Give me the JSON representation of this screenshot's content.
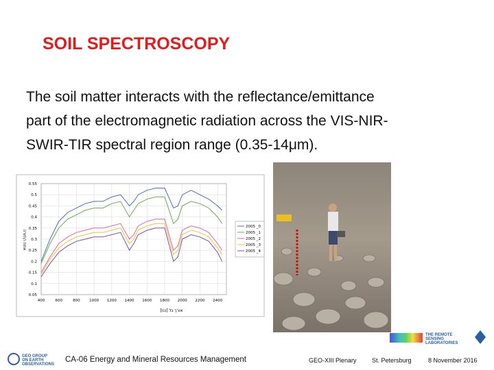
{
  "title": "SOIL SPECTROSCOPY",
  "body": {
    "lines": [
      "The soil matter interacts with the reflectance/emittance",
      "part of the electromagnetic radiation  across the VIS-NIR-",
      "SWIR-TIR spectral region range (0.35-14μm)."
    ]
  },
  "chart_data": {
    "type": "line",
    "x_label": "אורך גל [ננו]",
    "y_label": "אחוז החזרה",
    "x": [
      400,
      500,
      600,
      700,
      800,
      900,
      1000,
      1100,
      1200,
      1300,
      1400,
      1450,
      1500,
      1600,
      1700,
      1800,
      1900,
      1950,
      2000,
      2100,
      2200,
      2300,
      2400,
      2450
    ],
    "xlim": [
      400,
      2500
    ],
    "xticks": [
      400,
      600,
      800,
      1000,
      1200,
      1400,
      1600,
      1800,
      2000,
      2200,
      2400
    ],
    "ylim": [
      0.05,
      0.55
    ],
    "yticks": [
      0.05,
      0.1,
      0.15,
      0.2,
      0.25,
      0.3,
      0.35,
      0.4,
      0.45,
      0.5,
      0.55
    ],
    "grid": true,
    "legend": "right",
    "series": [
      {
        "name": "2005 _0",
        "color": "#4a6fb5",
        "values": [
          0.2,
          0.3,
          0.38,
          0.42,
          0.44,
          0.46,
          0.47,
          0.47,
          0.49,
          0.5,
          0.45,
          0.47,
          0.5,
          0.52,
          0.53,
          0.53,
          0.44,
          0.45,
          0.5,
          0.52,
          0.5,
          0.48,
          0.45,
          0.43
        ]
      },
      {
        "name": "2005 _1",
        "color": "#6aa84f",
        "values": [
          0.19,
          0.28,
          0.35,
          0.39,
          0.41,
          0.43,
          0.44,
          0.44,
          0.46,
          0.47,
          0.4,
          0.43,
          0.46,
          0.48,
          0.49,
          0.49,
          0.37,
          0.39,
          0.45,
          0.47,
          0.46,
          0.44,
          0.4,
          0.37
        ]
      },
      {
        "name": "2005 _2",
        "color": "#e066a8",
        "values": [
          0.15,
          0.22,
          0.28,
          0.31,
          0.33,
          0.34,
          0.35,
          0.35,
          0.36,
          0.37,
          0.3,
          0.32,
          0.36,
          0.38,
          0.39,
          0.39,
          0.25,
          0.27,
          0.34,
          0.36,
          0.35,
          0.33,
          0.28,
          0.25
        ]
      },
      {
        "name": "2005 _3",
        "color": "#e8c631",
        "values": [
          0.14,
          0.21,
          0.26,
          0.29,
          0.31,
          0.32,
          0.33,
          0.33,
          0.34,
          0.35,
          0.28,
          0.3,
          0.34,
          0.36,
          0.37,
          0.37,
          0.23,
          0.25,
          0.32,
          0.34,
          0.33,
          0.31,
          0.26,
          0.23
        ]
      },
      {
        "name": "2005 _4",
        "color": "#7b4fa8",
        "values": [
          0.13,
          0.19,
          0.24,
          0.27,
          0.29,
          0.3,
          0.31,
          0.31,
          0.32,
          0.33,
          0.25,
          0.28,
          0.32,
          0.34,
          0.35,
          0.35,
          0.2,
          0.22,
          0.3,
          0.32,
          0.31,
          0.29,
          0.24,
          0.2
        ]
      }
    ]
  },
  "footer": {
    "left_logo": "GEO GROUP ON EARTH OBSERVATIONS",
    "session": "CA-06 Energy and Mineral Resources Management",
    "meeting": "GEO-XIII Plenary",
    "place": "St. Petersburg",
    "date": "8 November 2016",
    "right_logo": "THE REMOTE SENSING LABORATORIES"
  }
}
